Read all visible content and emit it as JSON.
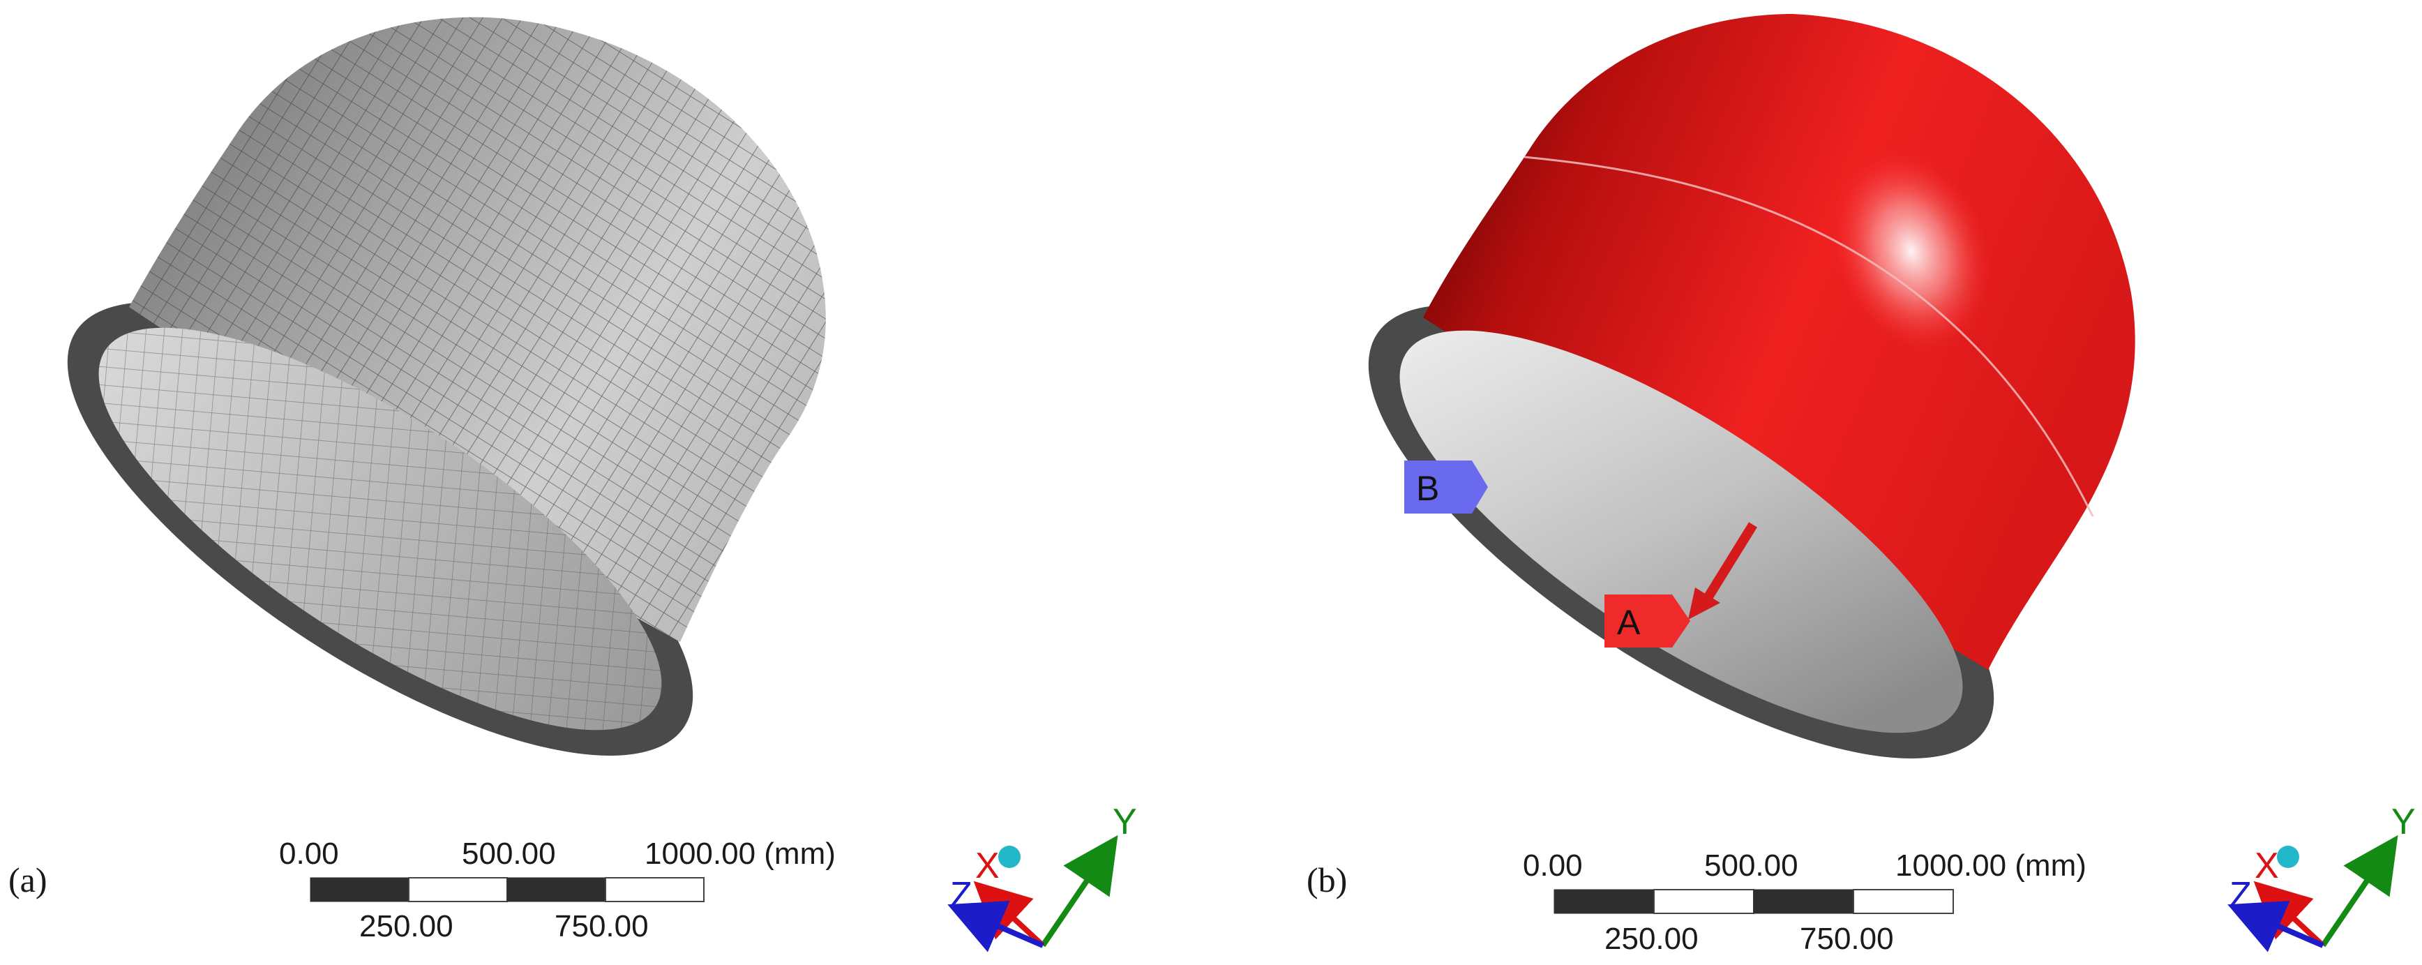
{
  "panels": [
    {
      "caption": "(a)",
      "view": "mesh",
      "scale_bar": {
        "top_labels": [
          "0.00",
          "500.00",
          "1000.00 (mm)"
        ],
        "bottom_labels": [
          "250.00",
          "750.00"
        ]
      },
      "triad": {
        "x": "X",
        "y": "Y",
        "z": "Z"
      }
    },
    {
      "caption": "(b)",
      "view": "boundary-conditions",
      "markers": [
        {
          "label": "A",
          "color": "#ee2a2a"
        },
        {
          "label": "B",
          "color": "#6a6aee"
        }
      ],
      "scale_bar": {
        "top_labels": [
          "0.00",
          "500.00",
          "1000.00 (mm)"
        ],
        "bottom_labels": [
          "250.00",
          "750.00"
        ]
      },
      "triad": {
        "x": "X",
        "y": "Y",
        "z": "Z"
      }
    }
  ],
  "colors": {
    "mesh_surface": "#b8b8b8",
    "mesh_lines": "#4a4a4a",
    "flange": "#4a4a4a",
    "solid_red": "#e41d1d",
    "inner_grey": "#bdbdbd",
    "axis_x": "#dd1111",
    "axis_y": "#138a13",
    "axis_z": "#1c1cc8",
    "triad_ball": "#22b7c9"
  }
}
